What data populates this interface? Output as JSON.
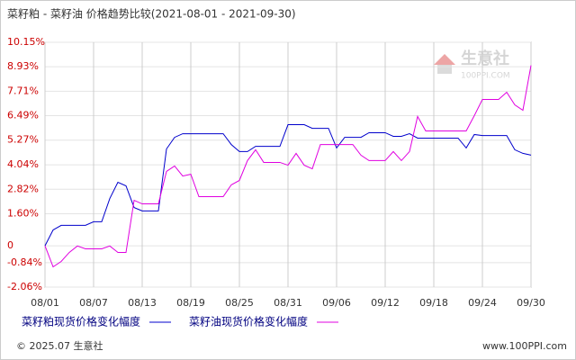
{
  "chart_data": {
    "type": "line",
    "title": "菜籽粕 - 菜籽油 价格趋势比较(2021-08-01 - 2021-09-30)",
    "categories": [
      "08/01",
      null,
      null,
      null,
      null,
      null,
      "08/07",
      null,
      null,
      null,
      null,
      null,
      "08/13",
      null,
      null,
      null,
      null,
      null,
      "08/19",
      null,
      null,
      null,
      null,
      null,
      "08/25",
      null,
      null,
      null,
      null,
      null,
      "08/31",
      null,
      null,
      null,
      null,
      null,
      "09/06",
      null,
      null,
      null,
      null,
      null,
      "09/12",
      null,
      null,
      null,
      null,
      null,
      "09/18",
      null,
      null,
      null,
      null,
      null,
      "09/24",
      null,
      null,
      null,
      null,
      null,
      "09/30"
    ],
    "series": [
      {
        "name": "菜籽粕现货价格变化幅度",
        "color": "#0000cc",
        "values": [
          0,
          0.79,
          1.02,
          1.02,
          1.02,
          1.02,
          1.2,
          1.2,
          2.36,
          3.17,
          2.99,
          1.91,
          1.74,
          1.74,
          1.74,
          4.83,
          5.41,
          5.59,
          5.59,
          5.59,
          5.59,
          5.59,
          5.59,
          5.05,
          4.7,
          4.7,
          4.96,
          4.96,
          4.96,
          4.96,
          6.04,
          6.04,
          6.04,
          5.86,
          5.86,
          5.86,
          4.88,
          5.41,
          5.41,
          5.41,
          5.64,
          5.64,
          5.64,
          5.46,
          5.46,
          5.59,
          5.37,
          5.37,
          5.37,
          5.37,
          5.37,
          5.37,
          4.88,
          5.55,
          5.5,
          5.5,
          5.5,
          5.5,
          4.79,
          4.61,
          4.52
        ]
      },
      {
        "name": "菜籽油现货价格变化幅度",
        "color": "#e000e0",
        "values": [
          0,
          -1.05,
          -0.78,
          -0.33,
          -0.01,
          -0.15,
          -0.15,
          -0.15,
          -0.01,
          -0.33,
          -0.33,
          2.27,
          2.09,
          2.09,
          2.09,
          3.71,
          3.98,
          3.48,
          3.57,
          2.45,
          2.45,
          2.45,
          2.45,
          3.04,
          3.26,
          4.25,
          4.79,
          4.16,
          4.16,
          4.16,
          4.02,
          4.61,
          4.02,
          3.84,
          5.05,
          5.05,
          5.05,
          5.05,
          5.05,
          4.52,
          4.25,
          4.25,
          4.25,
          4.7,
          4.25,
          4.7,
          6.45,
          5.73,
          5.73,
          5.73,
          5.73,
          5.73,
          5.73,
          6.49,
          7.3,
          7.3,
          7.3,
          7.66,
          7.03,
          6.76,
          9.0
        ]
      }
    ],
    "ylim": [
      -2.06,
      10.15
    ],
    "yticks": [
      {
        "value": 10.15,
        "label": "10.15%"
      },
      {
        "value": 8.93,
        "label": "8.93%"
      },
      {
        "value": 7.71,
        "label": "7.71%"
      },
      {
        "value": 6.49,
        "label": "6.49%"
      },
      {
        "value": 5.27,
        "label": "5.27%"
      },
      {
        "value": 4.04,
        "label": "4.04%"
      },
      {
        "value": 2.82,
        "label": "2.82%"
      },
      {
        "value": 1.6,
        "label": "1.60%"
      },
      0,
      {
        "value": -0.84,
        "label": "-0.84%"
      },
      {
        "value": -2.06,
        "label": "-2.06%"
      }
    ],
    "grid": true
  },
  "watermark": {
    "brand": "生意社",
    "site": "100PPI.COM"
  },
  "footer": {
    "copyright": "© 2025.07 生意社",
    "site": "www.100PPI.com"
  }
}
